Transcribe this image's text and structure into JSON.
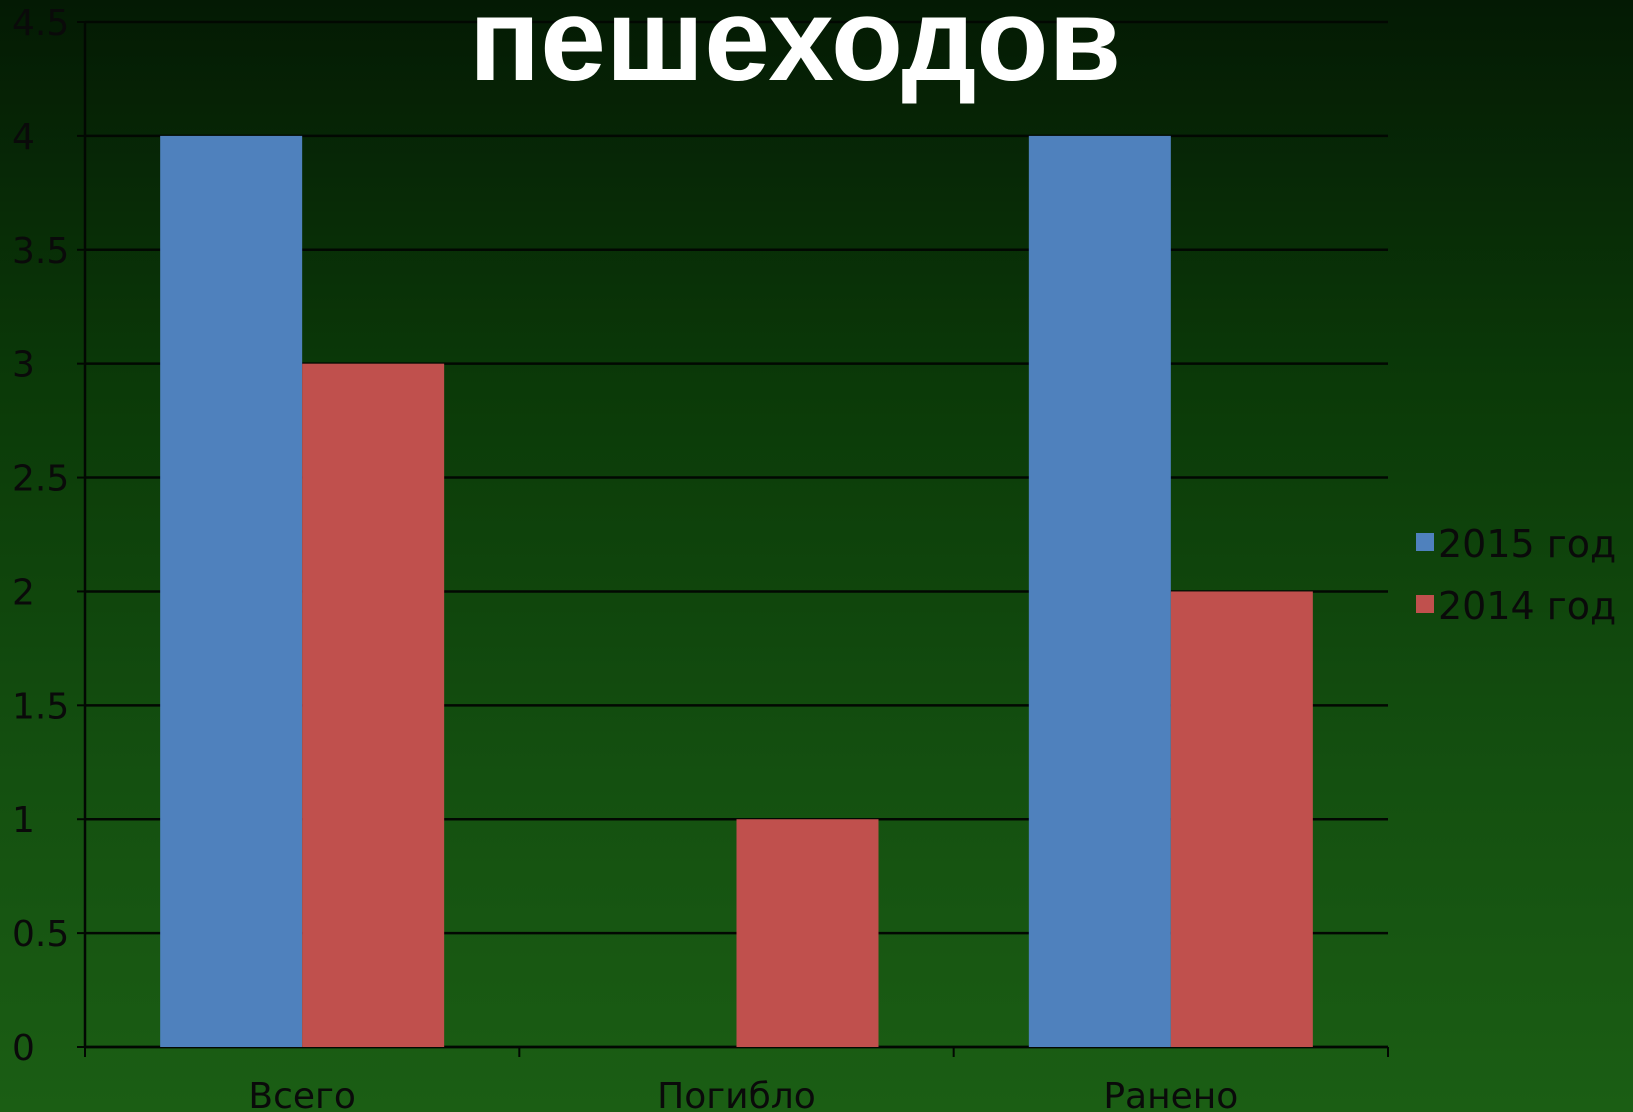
{
  "chart_data": {
    "type": "bar",
    "title": "пешеходов",
    "categories": [
      "Всего",
      "Погибло",
      "Ранено"
    ],
    "series": [
      {
        "name": "2015 год",
        "values": [
          4,
          0,
          4
        ],
        "color": "#4f81bd"
      },
      {
        "name": "2014 год",
        "values": [
          3,
          1,
          2
        ],
        "color": "#c0504d"
      }
    ],
    "ylim": [
      0,
      4.5
    ],
    "yticks": [
      "0",
      "0.5",
      "1",
      "1.5",
      "2",
      "2.5",
      "3",
      "3.5",
      "4",
      "4.5"
    ],
    "xlabel": "",
    "ylabel": "",
    "grid": true,
    "legend_position": "right"
  }
}
